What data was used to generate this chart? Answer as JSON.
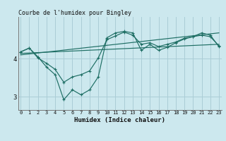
{
  "title": "Courbe de l'humidex pour Bingley",
  "xlabel": "Humidex (Indice chaleur)",
  "bg_color": "#cce8ee",
  "grid_color": "#aacdd6",
  "line_color": "#1e6e64",
  "xlim": [
    -0.3,
    23.3
  ],
  "ylim": [
    2.65,
    5.1
  ],
  "x_ticks": [
    0,
    1,
    2,
    3,
    4,
    5,
    6,
    7,
    8,
    9,
    10,
    11,
    12,
    13,
    14,
    15,
    16,
    17,
    18,
    19,
    20,
    21,
    22,
    23
  ],
  "y_ticks": [
    3,
    4
  ],
  "series_wavy1": {
    "x": [
      0,
      1,
      2,
      3,
      4,
      5,
      6,
      7,
      8,
      9,
      10,
      11,
      12,
      13,
      14,
      15,
      16,
      17,
      18,
      19,
      20,
      21,
      22,
      23
    ],
    "y": [
      4.18,
      4.28,
      4.05,
      3.78,
      3.58,
      2.92,
      3.18,
      3.05,
      3.18,
      3.52,
      4.55,
      4.68,
      4.72,
      4.68,
      4.22,
      4.38,
      4.22,
      4.3,
      4.42,
      4.52,
      4.58,
      4.68,
      4.62,
      4.32
    ]
  },
  "series_wavy2": {
    "x": [
      0,
      1,
      2,
      3,
      4,
      5,
      6,
      7,
      8,
      9,
      10,
      11,
      12,
      13,
      14,
      15,
      16,
      17,
      18,
      19,
      20,
      21,
      22,
      23
    ],
    "y": [
      4.18,
      4.28,
      4.02,
      3.88,
      3.72,
      3.38,
      3.52,
      3.58,
      3.68,
      4.02,
      4.5,
      4.6,
      4.7,
      4.62,
      4.38,
      4.42,
      4.32,
      4.38,
      4.44,
      4.54,
      4.58,
      4.62,
      4.58,
      4.34
    ]
  },
  "series_line1": {
    "x": [
      0,
      23
    ],
    "y": [
      4.14,
      4.38
    ]
  },
  "series_line2": {
    "x": [
      0,
      23
    ],
    "y": [
      4.1,
      4.68
    ]
  }
}
